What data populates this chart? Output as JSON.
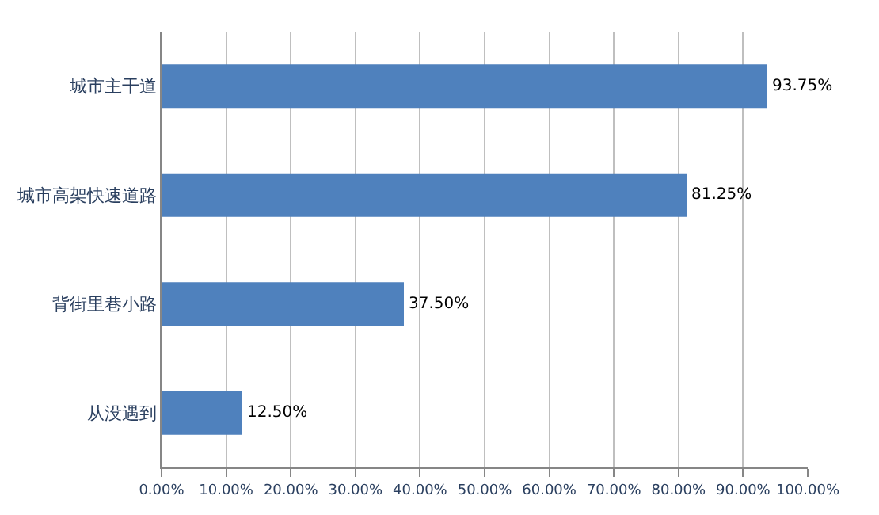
{
  "chart_data": {
    "type": "bar",
    "orientation": "horizontal",
    "categories": [
      "城市主干道",
      "城市高架快速道路",
      "背街里巷小路",
      "从没遇到"
    ],
    "values": [
      93.75,
      81.25,
      37.5,
      12.5
    ],
    "value_labels": [
      "93.75%",
      "81.25%",
      "37.50%",
      "12.50%"
    ],
    "color": "#4f81bd",
    "xlim": [
      0,
      100
    ],
    "xticks": [
      {
        "value": 0,
        "label": "0.00%"
      },
      {
        "value": 10,
        "label": "10.00%"
      },
      {
        "value": 20,
        "label": "20.00%"
      },
      {
        "value": 30,
        "label": "30.00%"
      },
      {
        "value": 40,
        "label": "40.00%"
      },
      {
        "value": 50,
        "label": "50.00%"
      },
      {
        "value": 60,
        "label": "60.00%"
      },
      {
        "value": 70,
        "label": "70.00%"
      },
      {
        "value": 80,
        "label": "80.00%"
      },
      {
        "value": 90,
        "label": "90.00%"
      },
      {
        "value": 100,
        "label": "100.00%"
      }
    ],
    "grid": "x"
  }
}
